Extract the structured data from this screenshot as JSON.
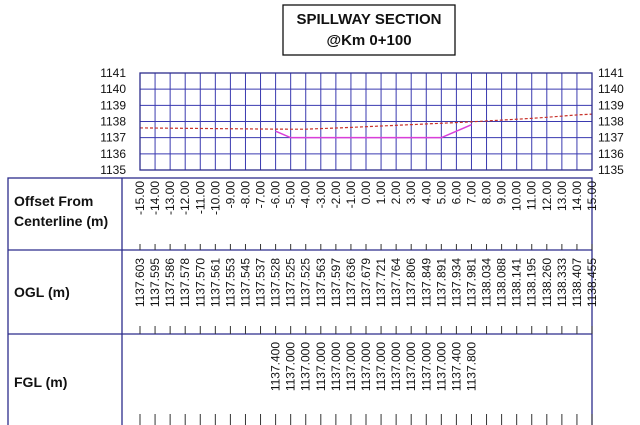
{
  "chart_data": {
    "type": "line",
    "title": "SPILLWAY SECTION",
    "subtitle": "@Km 0+100",
    "x_label": "Offset From Centerline (m)",
    "x": [
      -15,
      -14,
      -13,
      -12,
      -11,
      -10,
      -9,
      -8,
      -7,
      -6,
      -5,
      -4,
      -3,
      -2,
      -1,
      0,
      1,
      2,
      3,
      4,
      5,
      6,
      7,
      8,
      9,
      10,
      11,
      12,
      13,
      14,
      15
    ],
    "xlim": [
      -15,
      15
    ],
    "xticks": [
      {
        "value": -15,
        "label": "-15.00"
      },
      {
        "value": -14,
        "label": "-14.00"
      },
      {
        "value": -13,
        "label": "-13.00"
      },
      {
        "value": -12,
        "label": "-12.00"
      },
      {
        "value": -11,
        "label": "-11.00"
      },
      {
        "value": -10,
        "label": "-10.00"
      },
      {
        "value": -9,
        "label": "-9.00"
      },
      {
        "value": -8,
        "label": "-8.00"
      },
      {
        "value": -7,
        "label": "-7.00"
      },
      {
        "value": -6,
        "label": "-6.00"
      },
      {
        "value": -5,
        "label": "-5.00"
      },
      {
        "value": -4,
        "label": "-4.00"
      },
      {
        "value": -3,
        "label": "-3.00"
      },
      {
        "value": -2,
        "label": "-2.00"
      },
      {
        "value": -1,
        "label": "-1.00"
      },
      {
        "value": 0,
        "label": "0.00"
      },
      {
        "value": 1,
        "label": "1.00"
      },
      {
        "value": 2,
        "label": "2.00"
      },
      {
        "value": 3,
        "label": "3.00"
      },
      {
        "value": 4,
        "label": "4.00"
      },
      {
        "value": 5,
        "label": "5.00"
      },
      {
        "value": 6,
        "label": "6.00"
      },
      {
        "value": 7,
        "label": "7.00"
      },
      {
        "value": 8,
        "label": "8.00"
      },
      {
        "value": 9,
        "label": "9.00"
      },
      {
        "value": 10,
        "label": "10.00"
      },
      {
        "value": 11,
        "label": "11.00"
      },
      {
        "value": 12,
        "label": "12.00"
      },
      {
        "value": 13,
        "label": "13.00"
      },
      {
        "value": 14,
        "label": "14.00"
      },
      {
        "value": 15,
        "label": "15.00"
      }
    ],
    "ylim": [
      1135,
      1141
    ],
    "yticks": [
      1135,
      1136,
      1137,
      1138,
      1139,
      1140,
      1141
    ],
    "y2lim": [
      1135,
      1141
    ],
    "y2ticks": [
      1135,
      1136,
      1137,
      1138,
      1139,
      1140,
      1141
    ],
    "grid": true,
    "series": [
      {
        "name": "OGL (m)",
        "color": "#c8312a",
        "values": [
          1137.603,
          1137.595,
          1137.586,
          1137.578,
          1137.57,
          1137.561,
          1137.553,
          1137.545,
          1137.537,
          1137.528,
          1137.525,
          1137.525,
          1137.563,
          1137.597,
          1137.636,
          1137.679,
          1137.721,
          1137.764,
          1137.806,
          1137.849,
          1137.891,
          1137.934,
          1137.981,
          1138.034,
          1138.088,
          1138.141,
          1138.195,
          1138.26,
          1138.333,
          1138.407,
          1138.455
        ],
        "value_labels": [
          "1137.603",
          "1137.595",
          "1137.586",
          "1137.578",
          "1137.570",
          "1137.561",
          "1137.553",
          "1137.545",
          "1137.537",
          "1137.528",
          "1137.525",
          "1137.525",
          "1137.563",
          "1137.597",
          "1137.636",
          "1137.679",
          "1137.721",
          "1137.764",
          "1137.806",
          "1137.849",
          "1137.891",
          "1137.934",
          "1137.981",
          "1138.034",
          "1138.088",
          "1138.141",
          "1138.195",
          "1138.260",
          "1138.333",
          "1138.407",
          "1138.455"
        ]
      },
      {
        "name": "FGL (m)",
        "color": "#d93fd9",
        "values": [
          null,
          null,
          null,
          null,
          null,
          null,
          null,
          null,
          null,
          1137.4,
          1137,
          1137,
          1137,
          1137,
          1137,
          1137,
          1137,
          1137,
          1137,
          1137,
          1137,
          1137.4,
          1137.8,
          null,
          null,
          null,
          null,
          null,
          null,
          null,
          null
        ],
        "value_labels": [
          null,
          null,
          null,
          null,
          null,
          null,
          null,
          null,
          null,
          "1137.400",
          "1137.000",
          "1137.000",
          "1137.000",
          "1137.000",
          "1137.000",
          "1137.000",
          "1137.000",
          "1137.000",
          "1137.000",
          "1137.000",
          "1137.000",
          "1137.400",
          "1137.800",
          null,
          null,
          null,
          null,
          null,
          null,
          null,
          null
        ]
      }
    ]
  }
}
